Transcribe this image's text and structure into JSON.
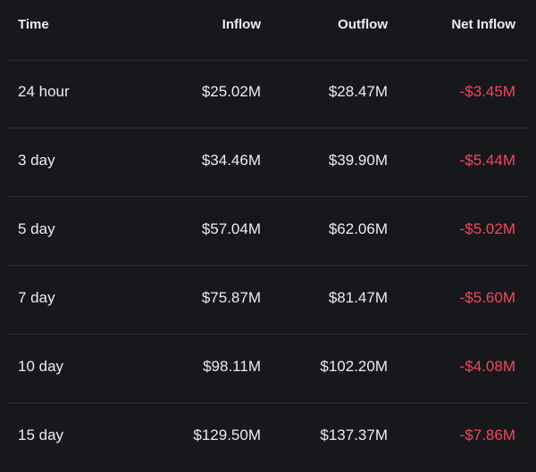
{
  "columns": {
    "time": "Time",
    "inflow": "Inflow",
    "outflow": "Outflow",
    "net_inflow": "Net Inflow"
  },
  "colors": {
    "background": "#17181c",
    "text": "#eaecef",
    "negative": "#f6465d",
    "divider": "#2b2f36"
  },
  "rows": [
    {
      "time": "24 hour",
      "inflow": "$25.02M",
      "outflow": "$28.47M",
      "net_inflow": "-$3.45M"
    },
    {
      "time": "3 day",
      "inflow": "$34.46M",
      "outflow": "$39.90M",
      "net_inflow": "-$5.44M"
    },
    {
      "time": "5 day",
      "inflow": "$57.04M",
      "outflow": "$62.06M",
      "net_inflow": "-$5.02M"
    },
    {
      "time": "7 day",
      "inflow": "$75.87M",
      "outflow": "$81.47M",
      "net_inflow": "-$5.60M"
    },
    {
      "time": "10 day",
      "inflow": "$98.11M",
      "outflow": "$102.20M",
      "net_inflow": "-$4.08M"
    },
    {
      "time": "15 day",
      "inflow": "$129.50M",
      "outflow": "$137.37M",
      "net_inflow": "-$7.86M"
    }
  ]
}
